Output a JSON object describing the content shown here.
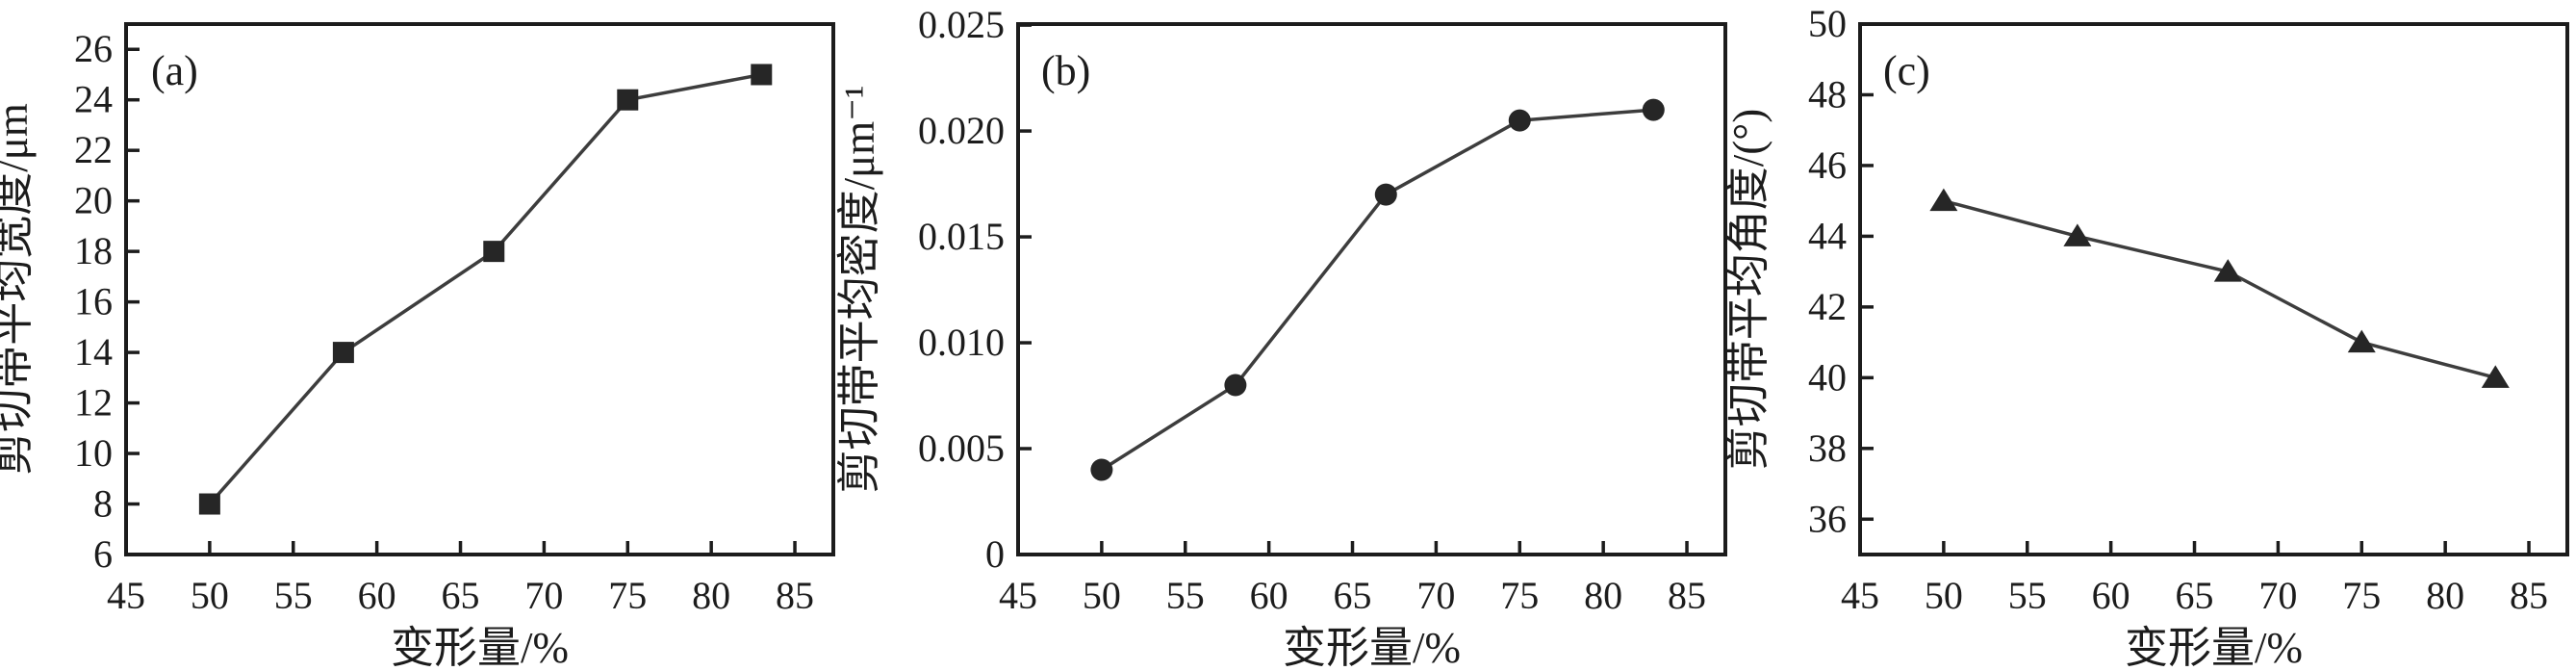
{
  "figure": {
    "background": "#ffffff",
    "ink_color": "#1c1c1c",
    "line_color": "#3d3d3d",
    "marker_color": "#262626"
  },
  "chart_data": [
    {
      "type": "line",
      "panel_label": "(a)",
      "marker": "square",
      "x": [
        50,
        58,
        67,
        75,
        83
      ],
      "values": [
        8,
        14,
        18,
        24,
        25
      ],
      "xlabel": "变形量/%",
      "ylabel": "剪切带平均宽度/μm",
      "xlim": [
        45,
        87.3
      ],
      "ylim": [
        6,
        27
      ],
      "x_ticks": [
        45,
        50,
        55,
        60,
        65,
        70,
        75,
        80,
        85
      ],
      "x_tick_labels": [
        "45",
        "50",
        "55",
        "60",
        "65",
        "70",
        "75",
        "80",
        "85"
      ],
      "y_ticks": [
        6,
        8,
        10,
        12,
        14,
        16,
        18,
        20,
        22,
        24,
        26
      ],
      "y_tick_labels": [
        "6",
        "8",
        "10",
        "12",
        "14",
        "16",
        "18",
        "20",
        "22",
        "24",
        "26"
      ],
      "grid": false,
      "legend": null
    },
    {
      "type": "line",
      "panel_label": "(b)",
      "marker": "circle",
      "x": [
        50,
        58,
        67,
        75,
        83
      ],
      "values": [
        0.004,
        0.008,
        0.017,
        0.0205,
        0.021
      ],
      "xlabel": "变形量/%",
      "ylabel": "剪切带平均密度/μm⁻¹",
      "xlim": [
        45,
        87.3
      ],
      "ylim": [
        0,
        0.02505
      ],
      "x_ticks": [
        45,
        50,
        55,
        60,
        65,
        70,
        75,
        80,
        85
      ],
      "x_tick_labels": [
        "45",
        "50",
        "55",
        "60",
        "65",
        "70",
        "75",
        "80",
        "85"
      ],
      "y_ticks": [
        0,
        0.005,
        0.01,
        0.015,
        0.02,
        0.025
      ],
      "y_tick_labels": [
        "0",
        "0.005",
        "0.010",
        "0.015",
        "0.020",
        "0.025"
      ],
      "grid": false,
      "legend": null
    },
    {
      "type": "line",
      "panel_label": "(c)",
      "marker": "triangle",
      "x": [
        50,
        58,
        67,
        75,
        83
      ],
      "values": [
        45,
        44,
        43,
        41,
        40
      ],
      "xlabel": "变形量/%",
      "ylabel": "剪切带平均角度/(°)",
      "xlim": [
        45,
        87.3
      ],
      "ylim": [
        35,
        50
      ],
      "x_ticks": [
        45,
        50,
        55,
        60,
        65,
        70,
        75,
        80,
        85
      ],
      "x_tick_labels": [
        "45",
        "50",
        "55",
        "60",
        "65",
        "70",
        "75",
        "80",
        "85"
      ],
      "y_ticks": [
        36,
        38,
        40,
        42,
        44,
        46,
        48,
        50
      ],
      "y_tick_labels": [
        "36",
        "38",
        "40",
        "42",
        "44",
        "46",
        "48",
        "50"
      ],
      "grid": false,
      "legend": null
    }
  ]
}
